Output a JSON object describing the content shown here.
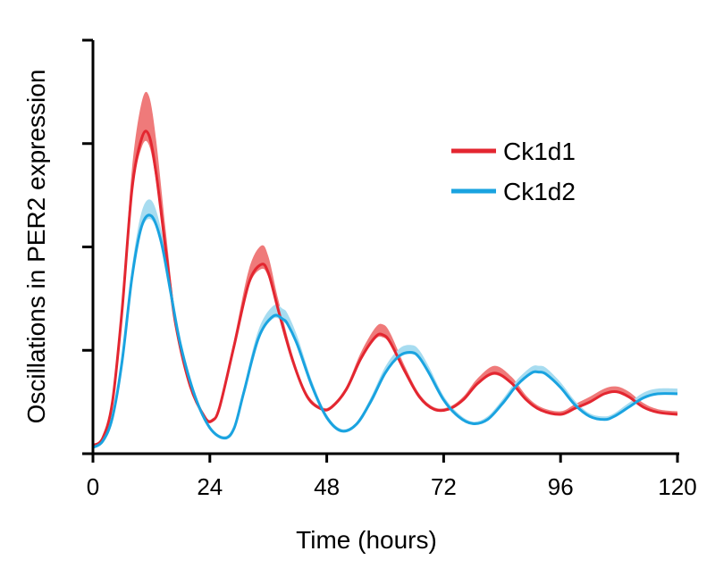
{
  "chart_data": {
    "type": "line",
    "title": "",
    "xlabel": "Time (hours)",
    "ylabel": "Oscillations in PER2 expression",
    "xlim": [
      0,
      120
    ],
    "ylim": [
      0,
      4
    ],
    "xticks": [
      0,
      24,
      48,
      72,
      96,
      120
    ],
    "xtick_labels": [
      "0",
      "24",
      "48",
      "72",
      "96",
      "120"
    ],
    "yticks": [
      0,
      1,
      2,
      3,
      4
    ],
    "ytick_labels": [
      "",
      "",
      "",
      "",
      ""
    ],
    "grid": false,
    "legend_position": "top-right",
    "series": [
      {
        "name": "Ck1d1",
        "color": "#e32630",
        "band_color": "#ef7a7a",
        "x": [
          0,
          2,
          4,
          6,
          8,
          10,
          11.5,
          13,
          15,
          17,
          20,
          23,
          24.5,
          26,
          29,
          32,
          34.5,
          36,
          38,
          41,
          44,
          47,
          49,
          52,
          55,
          58,
          59.5,
          61,
          64,
          67,
          70,
          73,
          76,
          79,
          82.5,
          86,
          89,
          92,
          96,
          99,
          102,
          105,
          107.5,
          110,
          113,
          116,
          120
        ],
        "values": [
          0.08,
          0.15,
          0.5,
          1.4,
          2.55,
          3.05,
          3.08,
          2.7,
          1.95,
          1.25,
          0.65,
          0.35,
          0.32,
          0.45,
          1.05,
          1.65,
          1.83,
          1.75,
          1.4,
          0.9,
          0.55,
          0.43,
          0.45,
          0.62,
          0.92,
          1.13,
          1.15,
          1.08,
          0.8,
          0.55,
          0.43,
          0.43,
          0.52,
          0.68,
          0.78,
          0.68,
          0.52,
          0.42,
          0.38,
          0.44,
          0.5,
          0.58,
          0.6,
          0.55,
          0.45,
          0.4,
          0.38
        ],
        "band": [
          0.0,
          0.0,
          0.02,
          0.06,
          0.2,
          0.35,
          0.38,
          0.32,
          0.18,
          0.08,
          0.04,
          0.02,
          0.02,
          0.02,
          0.06,
          0.13,
          0.18,
          0.16,
          0.1,
          0.05,
          0.03,
          0.02,
          0.02,
          0.03,
          0.06,
          0.09,
          0.1,
          0.09,
          0.05,
          0.03,
          0.02,
          0.02,
          0.03,
          0.05,
          0.07,
          0.06,
          0.04,
          0.03,
          0.03,
          0.04,
          0.05,
          0.05,
          0.05,
          0.05,
          0.04,
          0.03,
          0.03
        ]
      },
      {
        "name": "Ck1d2",
        "color": "#1aa3e0",
        "band_color": "#a7dcf0",
        "x": [
          0,
          2,
          4,
          6,
          8,
          10,
          12,
          14,
          16,
          18,
          21,
          24,
          27,
          29,
          31,
          34,
          37,
          39,
          40,
          42,
          45,
          48,
          51,
          54,
          57,
          60,
          63,
          65.5,
          67,
          69,
          72,
          75,
          78,
          81,
          84,
          87,
          90,
          91.5,
          93,
          96,
          99,
          102,
          105,
          107,
          110,
          113,
          116,
          120
        ],
        "values": [
          0.06,
          0.12,
          0.35,
          0.9,
          1.7,
          2.2,
          2.3,
          2.05,
          1.55,
          1.05,
          0.55,
          0.25,
          0.15,
          0.25,
          0.6,
          1.12,
          1.33,
          1.3,
          1.25,
          1.05,
          0.65,
          0.35,
          0.22,
          0.28,
          0.5,
          0.78,
          0.95,
          0.98,
          0.93,
          0.78,
          0.52,
          0.36,
          0.29,
          0.33,
          0.48,
          0.66,
          0.78,
          0.79,
          0.77,
          0.64,
          0.47,
          0.36,
          0.33,
          0.36,
          0.45,
          0.54,
          0.58,
          0.58
        ],
        "band": [
          0.0,
          0.0,
          0.02,
          0.06,
          0.1,
          0.14,
          0.15,
          0.12,
          0.08,
          0.05,
          0.03,
          0.02,
          0.02,
          0.03,
          0.05,
          0.08,
          0.1,
          0.1,
          0.1,
          0.08,
          0.05,
          0.03,
          0.02,
          0.02,
          0.04,
          0.06,
          0.07,
          0.07,
          0.07,
          0.06,
          0.04,
          0.03,
          0.02,
          0.03,
          0.04,
          0.05,
          0.06,
          0.06,
          0.06,
          0.05,
          0.04,
          0.03,
          0.03,
          0.03,
          0.04,
          0.05,
          0.05,
          0.05
        ]
      }
    ]
  }
}
